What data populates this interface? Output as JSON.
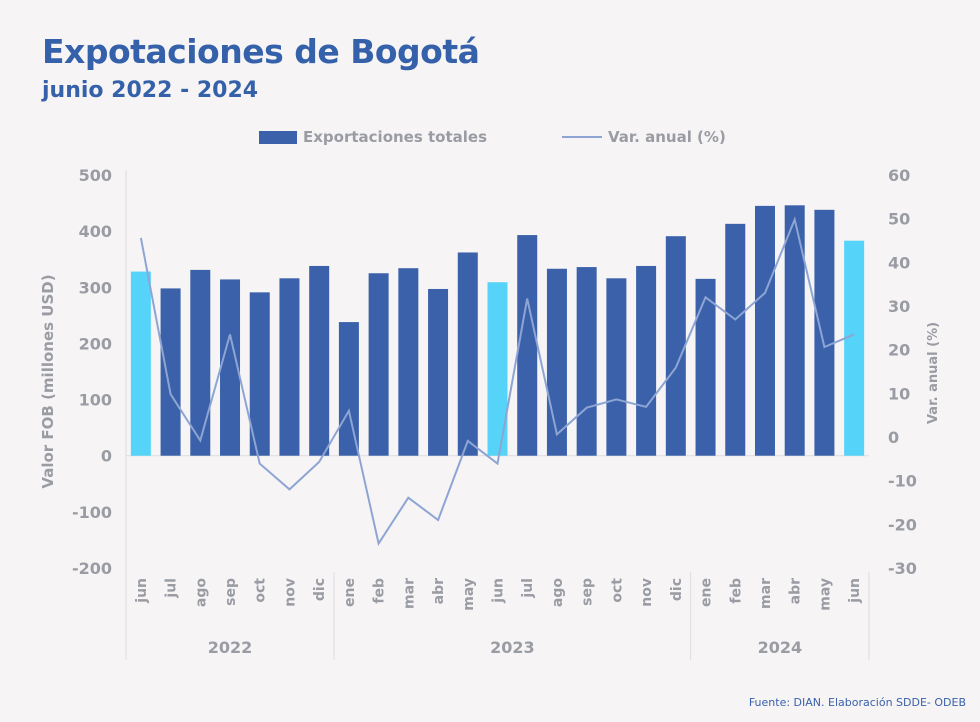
{
  "header": {
    "title": "Expotaciones de Bogotá",
    "subtitle": "junio 2022 - 2024"
  },
  "legend": {
    "bars_label": "Exportaciones totales",
    "line_label": "Var. anual (%)"
  },
  "source": "Fuente: DIAN. Elaboración SDDE- ODEB",
  "colors": {
    "bar": "#3a61aa",
    "bar_highlight": "#55d3f8",
    "line": "#8ea5d4",
    "title": "#3461a9",
    "axis_text": "#9a9ca3"
  },
  "chart_data": {
    "type": "bar",
    "title": "Expotaciones de Bogotá",
    "subtitle": "junio 2022 - 2024",
    "xlabel": "",
    "ylabel": "Valor FOB (millones USD)",
    "y2label": "Var. anual (%)",
    "ylim": [
      -200,
      500
    ],
    "y2lim": [
      -30,
      60
    ],
    "yticks": [
      500,
      400,
      300,
      200,
      100,
      0,
      -100,
      -200
    ],
    "y2ticks": [
      60,
      50,
      40,
      30,
      20,
      10,
      0,
      -10,
      -20,
      -30
    ],
    "grid": false,
    "legend_position": "top-center",
    "categories": [
      "jun",
      "jul",
      "ago",
      "sep",
      "oct",
      "nov",
      "dic",
      "ene",
      "feb",
      "mar",
      "abr",
      "may",
      "jun",
      "jul",
      "ago",
      "sep",
      "oct",
      "nov",
      "dic",
      "ene",
      "feb",
      "mar",
      "abr",
      "may",
      "jun"
    ],
    "highlight_indices": [
      0,
      12,
      24
    ],
    "year_groups": [
      {
        "label": "2022",
        "start": 0,
        "end": 6
      },
      {
        "label": "2023",
        "start": 7,
        "end": 18
      },
      {
        "label": "2024",
        "start": 19,
        "end": 24
      }
    ],
    "series": [
      {
        "name": "Exportaciones totales",
        "type": "bar",
        "axis": "left",
        "values": [
          328,
          298,
          331,
          314,
          291,
          316,
          338,
          238,
          325,
          334,
          297,
          362,
          309,
          393,
          333,
          336,
          316,
          338,
          391,
          315,
          413,
          445,
          446,
          438,
          383
        ]
      },
      {
        "name": "Var. anual (%)",
        "type": "line",
        "axis": "right",
        "values": [
          45.6,
          9.8,
          -0.8,
          23.5,
          -6.1,
          -12.0,
          -5.7,
          6.0,
          -24.4,
          -13.9,
          -19.0,
          -0.9,
          -6.1,
          31.7,
          0.6,
          6.7,
          8.6,
          6.9,
          15.9,
          32.0,
          26.9,
          33.0,
          49.8,
          20.6,
          23.5
        ]
      }
    ]
  }
}
